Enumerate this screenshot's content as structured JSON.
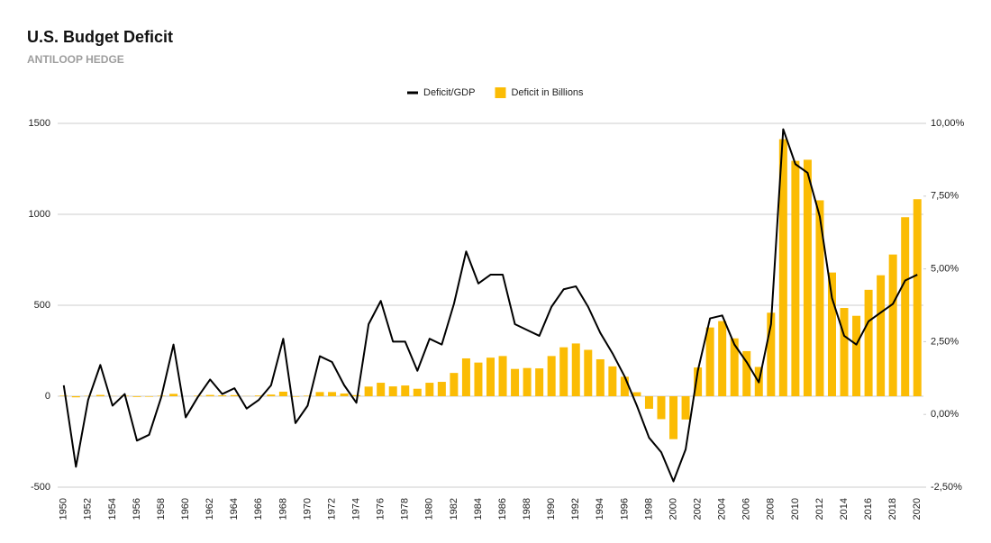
{
  "chart_data": {
    "type": "combo",
    "title": "U.S. Budget Deficit",
    "subtitle": "ANTILOOP HEDGE",
    "categories": [
      "1950",
      null,
      "1952",
      null,
      "1954",
      null,
      "1956",
      null,
      "1958",
      null,
      "1960",
      null,
      "1962",
      null,
      "1964",
      null,
      "1966",
      null,
      "1968",
      null,
      "1970",
      null,
      "1972",
      null,
      "1974",
      null,
      "1976",
      null,
      "1978",
      null,
      "1980",
      null,
      "1982",
      null,
      "1984",
      null,
      "1986",
      null,
      "1988",
      null,
      "1990",
      null,
      "1992",
      null,
      "1994",
      null,
      "1996",
      null,
      "1998",
      null,
      "2000",
      null,
      "2002",
      null,
      "2004",
      null,
      "2006",
      null,
      "2008",
      null,
      "2010",
      null,
      "2012",
      null,
      "2014",
      null,
      "2016",
      null,
      "2018",
      null,
      "2020"
    ],
    "series": [
      {
        "name": "Deficit/GDP",
        "type": "line",
        "axis": "y2",
        "color": "#000000",
        "values": [
          1.0,
          -1.8,
          0.5,
          1.7,
          0.3,
          0.7,
          -0.9,
          -0.7,
          0.6,
          2.4,
          -0.1,
          0.6,
          1.2,
          0.7,
          0.9,
          0.2,
          0.5,
          1.0,
          2.6,
          -0.3,
          0.3,
          2.0,
          1.8,
          1.0,
          0.4,
          3.1,
          3.9,
          2.5,
          2.5,
          1.5,
          2.6,
          2.4,
          3.8,
          5.6,
          4.5,
          4.8,
          4.8,
          3.1,
          2.9,
          2.7,
          3.7,
          4.3,
          4.4,
          3.7,
          2.8,
          2.1,
          1.3,
          0.3,
          -0.8,
          -1.3,
          -2.3,
          -1.2,
          1.5,
          3.3,
          3.4,
          2.4,
          1.8,
          1.1,
          3.1,
          9.8,
          8.6,
          8.3,
          6.8,
          4.0,
          2.7,
          2.4,
          3.2,
          3.5,
          3.8,
          4.6,
          4.8
        ]
      },
      {
        "name": "Deficit in Billions",
        "type": "bar",
        "color": "#fbbc04",
        "values": [
          3,
          -6,
          2,
          7,
          1,
          3,
          -4,
          -3,
          3,
          13,
          0,
          3,
          7,
          5,
          6,
          1,
          4,
          9,
          25,
          -3,
          3,
          23,
          23,
          15,
          6,
          53,
          74,
          54,
          59,
          41,
          74,
          79,
          128,
          208,
          185,
          212,
          221,
          150,
          155,
          153,
          221,
          269,
          290,
          255,
          203,
          164,
          107,
          22,
          -69,
          -126,
          -236,
          -128,
          158,
          378,
          413,
          318,
          248,
          161,
          459,
          1413,
          1294,
          1300,
          1077,
          680,
          485,
          442,
          585,
          665,
          779,
          984,
          1083
        ]
      }
    ],
    "ylim": [
      -500,
      1500
    ],
    "yticks": [
      -500,
      0,
      500,
      1000,
      1500
    ],
    "y2lim": [
      -2.5,
      10
    ],
    "y2ticks": [
      {
        "value": -2.5,
        "label": "-2,50%"
      },
      {
        "value": 0,
        "label": "0,00%"
      },
      {
        "value": 2.5,
        "label": "2,50%"
      },
      {
        "value": 5,
        "label": "5,00%"
      },
      {
        "value": 7.5,
        "label": "7,50%"
      },
      {
        "value": 10,
        "label": "10,00%"
      }
    ],
    "grid": true,
    "legend": "top"
  }
}
